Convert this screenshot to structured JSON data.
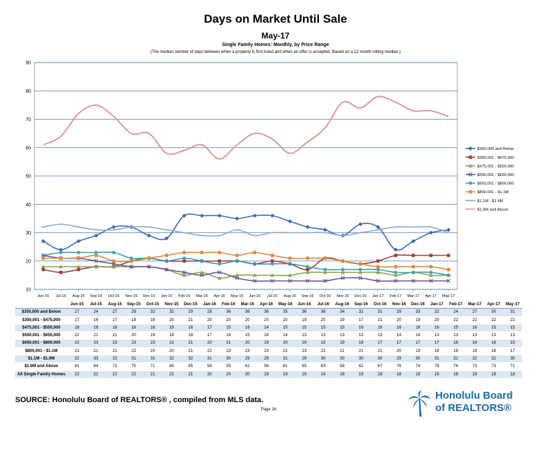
{
  "header": {
    "title": "Days on Market Until Sale",
    "subtitle": "May-17",
    "description_bold": "Single Family Homes: Monthly, by Price Range",
    "description": "(The median number of days between when a property is first listed and when an offer is accepted. Based on a 12 month rolling median.)"
  },
  "chart_data": {
    "type": "line",
    "ylim": [
      10,
      90
    ],
    "yticks": [
      10,
      20,
      30,
      40,
      50,
      60,
      70,
      80,
      90
    ],
    "grid": true,
    "legend_position": "right",
    "categories": [
      "Jun-15",
      "Jul-15",
      "Aug-15",
      "Sep-15",
      "Oct-15",
      "Nov-15",
      "Dec-15",
      "Jan-16",
      "Feb-16",
      "Mar-16",
      "Apr-16",
      "May-16",
      "Jun-16",
      "Jul-16",
      "Aug-16",
      "Sep-16",
      "Oct-16",
      "Nov-16",
      "Dec-16",
      "Jan-17",
      "Feb-17",
      "Mar-17",
      "Apr-17",
      "May-17"
    ],
    "series": [
      {
        "name": "$350,000 and Below",
        "color": "#3b6aa8",
        "marker": "diamond",
        "values": [
          27,
          24,
          27,
          29,
          32,
          32,
          29,
          28,
          36,
          36,
          36,
          35,
          36,
          36,
          34,
          32,
          31,
          29,
          33,
          32,
          24,
          27,
          30,
          31
        ]
      },
      {
        "name": "$350,001 - $475,000",
        "color": "#a13a37",
        "marker": "square",
        "values": [
          17,
          16,
          17,
          18,
          18,
          20,
          21,
          20,
          20,
          20,
          20,
          20,
          19,
          20,
          19,
          17,
          21,
          20,
          19,
          20,
          22,
          22,
          22,
          22
        ]
      },
      {
        "name": "$475,001 - $550,000",
        "color": "#86a64a",
        "marker": "triangle",
        "values": [
          18,
          18,
          18,
          18,
          18,
          18,
          18,
          17,
          15,
          16,
          14,
          15,
          15,
          15,
          15,
          16,
          16,
          16,
          16,
          16,
          15,
          16,
          15,
          15
        ]
      },
      {
        "name": "$550,001 - $650,000",
        "color": "#6c5290",
        "marker": "x",
        "values": [
          22,
          21,
          21,
          20,
          19,
          18,
          18,
          17,
          16,
          15,
          16,
          14,
          13,
          13,
          13,
          13,
          13,
          14,
          14,
          13,
          13,
          13,
          13,
          13
        ]
      },
      {
        "name": "$650,001 - $800,000",
        "color": "#3a9ab0",
        "marker": "star",
        "values": [
          22,
          23,
          23,
          23,
          23,
          21,
          21,
          20,
          21,
          20,
          19,
          20,
          19,
          19,
          19,
          18,
          17,
          17,
          17,
          17,
          16,
          16,
          16,
          15
        ]
      },
      {
        "name": "$800,001 - $1.1M",
        "color": "#e08a3a",
        "marker": "circle",
        "values": [
          21,
          21,
          21,
          22,
          20,
          20,
          21,
          22,
          23,
          23,
          23,
          22,
          23,
          22,
          21,
          21,
          21,
          20,
          19,
          18,
          18,
          18,
          18,
          17
        ]
      },
      {
        "name": "$1.1M - $1.9M",
        "color": "#8aa6d2",
        "marker": "dash",
        "values": [
          32,
          33,
          32,
          31,
          31,
          32,
          32,
          31,
          30,
          29,
          29,
          31,
          29,
          30,
          30,
          30,
          30,
          29,
          30,
          31,
          32,
          32,
          32,
          30
        ]
      },
      {
        "name": "$1.9M and Above",
        "color": "#d89a9a",
        "marker": "none",
        "values": [
          61,
          64,
          72,
          75,
          71,
          65,
          65,
          58,
          59,
          61,
          56,
          61,
          65,
          63,
          58,
          62,
          67,
          76,
          74,
          78,
          76,
          73,
          73,
          71
        ]
      }
    ]
  },
  "table": {
    "all_row_label": "All Single Family Homes",
    "all_values": [
      22,
      22,
      22,
      22,
      21,
      21,
      21,
      20,
      20,
      20,
      19,
      19,
      19,
      19,
      19,
      19,
      18,
      18,
      18,
      18,
      18,
      18,
      18,
      18
    ]
  },
  "footer": {
    "source": "SOURCE:  Honolulu Board of REALTORS® , compiled from MLS data.",
    "page": "Page 16",
    "logo_line1": "Honolulu Board",
    "logo_line2": "of REALTORS®"
  }
}
